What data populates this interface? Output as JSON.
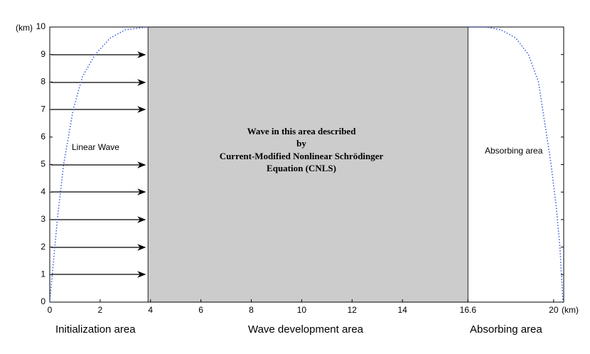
{
  "chart_data": {
    "type": "line",
    "x_label": "(km)",
    "y_label": "(km)",
    "xlim": [
      0,
      20.4
    ],
    "ylim": [
      0,
      10
    ],
    "xticks": [
      0,
      2,
      4,
      6,
      8,
      10,
      12,
      14,
      16.6,
      20
    ],
    "yticks": [
      0,
      1,
      2,
      3,
      4,
      5,
      6,
      7,
      8,
      9,
      10
    ],
    "regions": [
      {
        "x": [
          3.9,
          16.6
        ],
        "color": "#cccccc"
      }
    ],
    "series": [
      {
        "color": "#3355dd",
        "x": [
          0,
          0.1,
          0.3,
          0.55,
          0.93,
          1.3,
          1.8,
          2.4,
          3.0,
          3.9
        ],
        "values": [
          0,
          1,
          3,
          5,
          7,
          8.2,
          9,
          9.6,
          9.9,
          10
        ]
      },
      {
        "color": "#3355dd",
        "x": [
          16.6,
          17.3,
          17.9,
          18.5,
          19.0,
          19.4,
          19.9,
          20.1,
          20.25,
          20.37
        ],
        "values": [
          10,
          10,
          9.9,
          9.6,
          9,
          8,
          5,
          3.5,
          2,
          0
        ]
      }
    ],
    "annotations": {
      "linear_wave": "Linear Wave",
      "absorbing_inner": "Absorbing area",
      "center": [
        "Wave in this area described",
        "by",
        "Current-Modified Nonlinear Schrödinger",
        "Equation (CNLS)"
      ],
      "areas": [
        "Initialization area",
        "Wave development area",
        "Absorbing area"
      ]
    }
  }
}
